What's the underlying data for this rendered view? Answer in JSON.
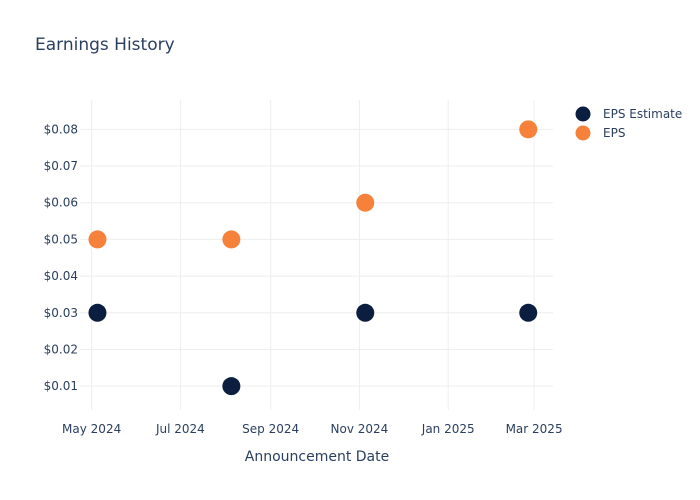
{
  "chart_data": {
    "type": "scatter",
    "title": "Earnings History",
    "xlabel": "Announcement Date",
    "ylabel": "",
    "x_ticks": [
      "May 2024",
      "Jul 2024",
      "Sep 2024",
      "Nov 2024",
      "Jan 2025",
      "Mar 2025"
    ],
    "y_ticks": [
      "$0.01",
      "$0.02",
      "$0.03",
      "$0.04",
      "$0.05",
      "$0.06",
      "$0.07",
      "$0.08"
    ],
    "ylim": [
      0.0035,
      0.088
    ],
    "xlim": [
      "2024-04-23",
      "2025-03-14"
    ],
    "grid": true,
    "legend_position": "top-right",
    "series": [
      {
        "name": "EPS Estimate",
        "color": "#0b1e3f",
        "points": [
          {
            "x": "2024-05-05",
            "y": 0.03
          },
          {
            "x": "2024-08-05",
            "y": 0.01
          },
          {
            "x": "2024-11-05",
            "y": 0.03
          },
          {
            "x": "2025-02-25",
            "y": 0.03
          }
        ]
      },
      {
        "name": "EPS",
        "color": "#f5813b",
        "points": [
          {
            "x": "2024-05-05",
            "y": 0.05
          },
          {
            "x": "2024-08-05",
            "y": 0.05
          },
          {
            "x": "2024-11-05",
            "y": 0.06
          },
          {
            "x": "2025-02-25",
            "y": 0.08
          }
        ]
      }
    ]
  }
}
